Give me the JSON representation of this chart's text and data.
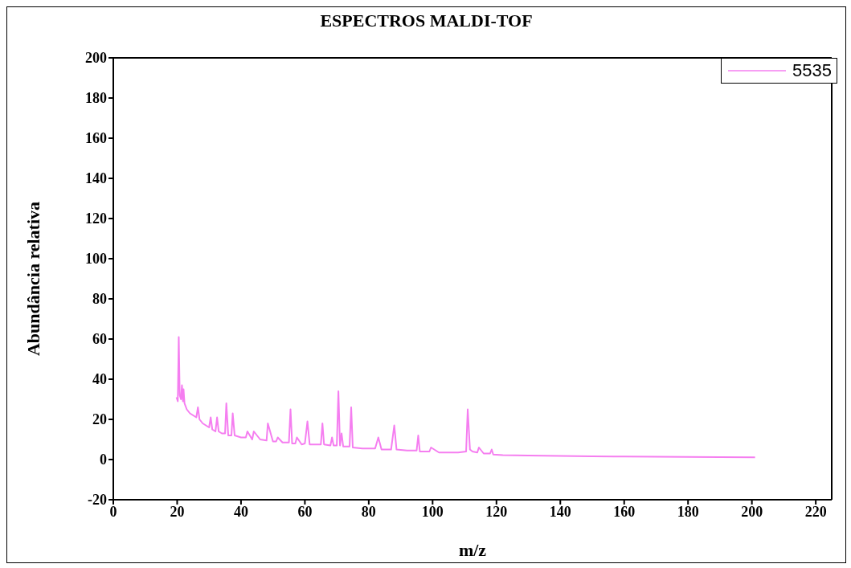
{
  "chart_data": {
    "type": "line",
    "title": "ESPECTROS MALDI-TOF",
    "xlabel": "m/z",
    "ylabel": "Abundância relativa",
    "xlim": [
      0,
      225
    ],
    "xticks": [
      0,
      20,
      40,
      60,
      80,
      100,
      120,
      140,
      160,
      180,
      200,
      220
    ],
    "ylim": [
      -20,
      200
    ],
    "yticks": [
      -20,
      0,
      20,
      40,
      60,
      80,
      100,
      120,
      140,
      160,
      180,
      200
    ],
    "legend": "top right",
    "grid": false,
    "marker": "none",
    "series": [
      {
        "name": "5535",
        "color": "#f57ef0",
        "x": [
          19.8,
          20.2,
          20.5,
          20.8,
          21.2,
          21.5,
          21.8,
          22,
          22.3,
          23,
          24,
          25,
          26,
          26.5,
          27,
          28,
          29,
          30,
          30.5,
          31,
          32,
          32.5,
          33,
          34,
          35,
          35.4,
          36,
          37,
          37.4,
          38,
          40,
          41.5,
          42,
          43.5,
          44,
          46,
          48,
          48.4,
          50,
          51,
          51.5,
          53,
          55,
          55.5,
          56,
          57,
          57.5,
          59,
          60,
          60.8,
          61.5,
          63,
          65,
          65.5,
          66,
          68,
          68.5,
          69,
          70,
          70.5,
          71,
          71.5,
          72,
          74,
          74.5,
          75,
          78,
          82,
          83,
          84,
          87,
          88,
          88.7,
          92,
          95,
          95.5,
          96,
          99,
          99.5,
          102,
          108,
          110.5,
          111,
          111.7,
          112.5,
          114,
          114.5,
          116,
          118,
          118.5,
          119,
          122,
          130,
          140,
          150,
          160,
          170,
          180,
          190,
          201
        ],
        "values": [
          31,
          29,
          61,
          32,
          30,
          37,
          29,
          35,
          28,
          25,
          23,
          22,
          21,
          26,
          20,
          18,
          17,
          16,
          21,
          15,
          14,
          21,
          14,
          13,
          13,
          28,
          12,
          12,
          23,
          12,
          11,
          11,
          14,
          10,
          14,
          10,
          9.5,
          18,
          9,
          9,
          11,
          8.5,
          8.5,
          25,
          8,
          8,
          11,
          7.5,
          8,
          19,
          7.5,
          7.5,
          7.5,
          18,
          7.5,
          7,
          11,
          7,
          7,
          34,
          7,
          13,
          6.5,
          6.5,
          26,
          6,
          5.5,
          5.5,
          11,
          5,
          5,
          17,
          5,
          4.5,
          4.5,
          12,
          4,
          4,
          6,
          3.5,
          3.5,
          4,
          25,
          5,
          4,
          3.5,
          6,
          3,
          3,
          5,
          2.5,
          2.2,
          2,
          1.8,
          1.6,
          1.5,
          1.4,
          1.3,
          1.2,
          1.1
        ]
      }
    ]
  }
}
